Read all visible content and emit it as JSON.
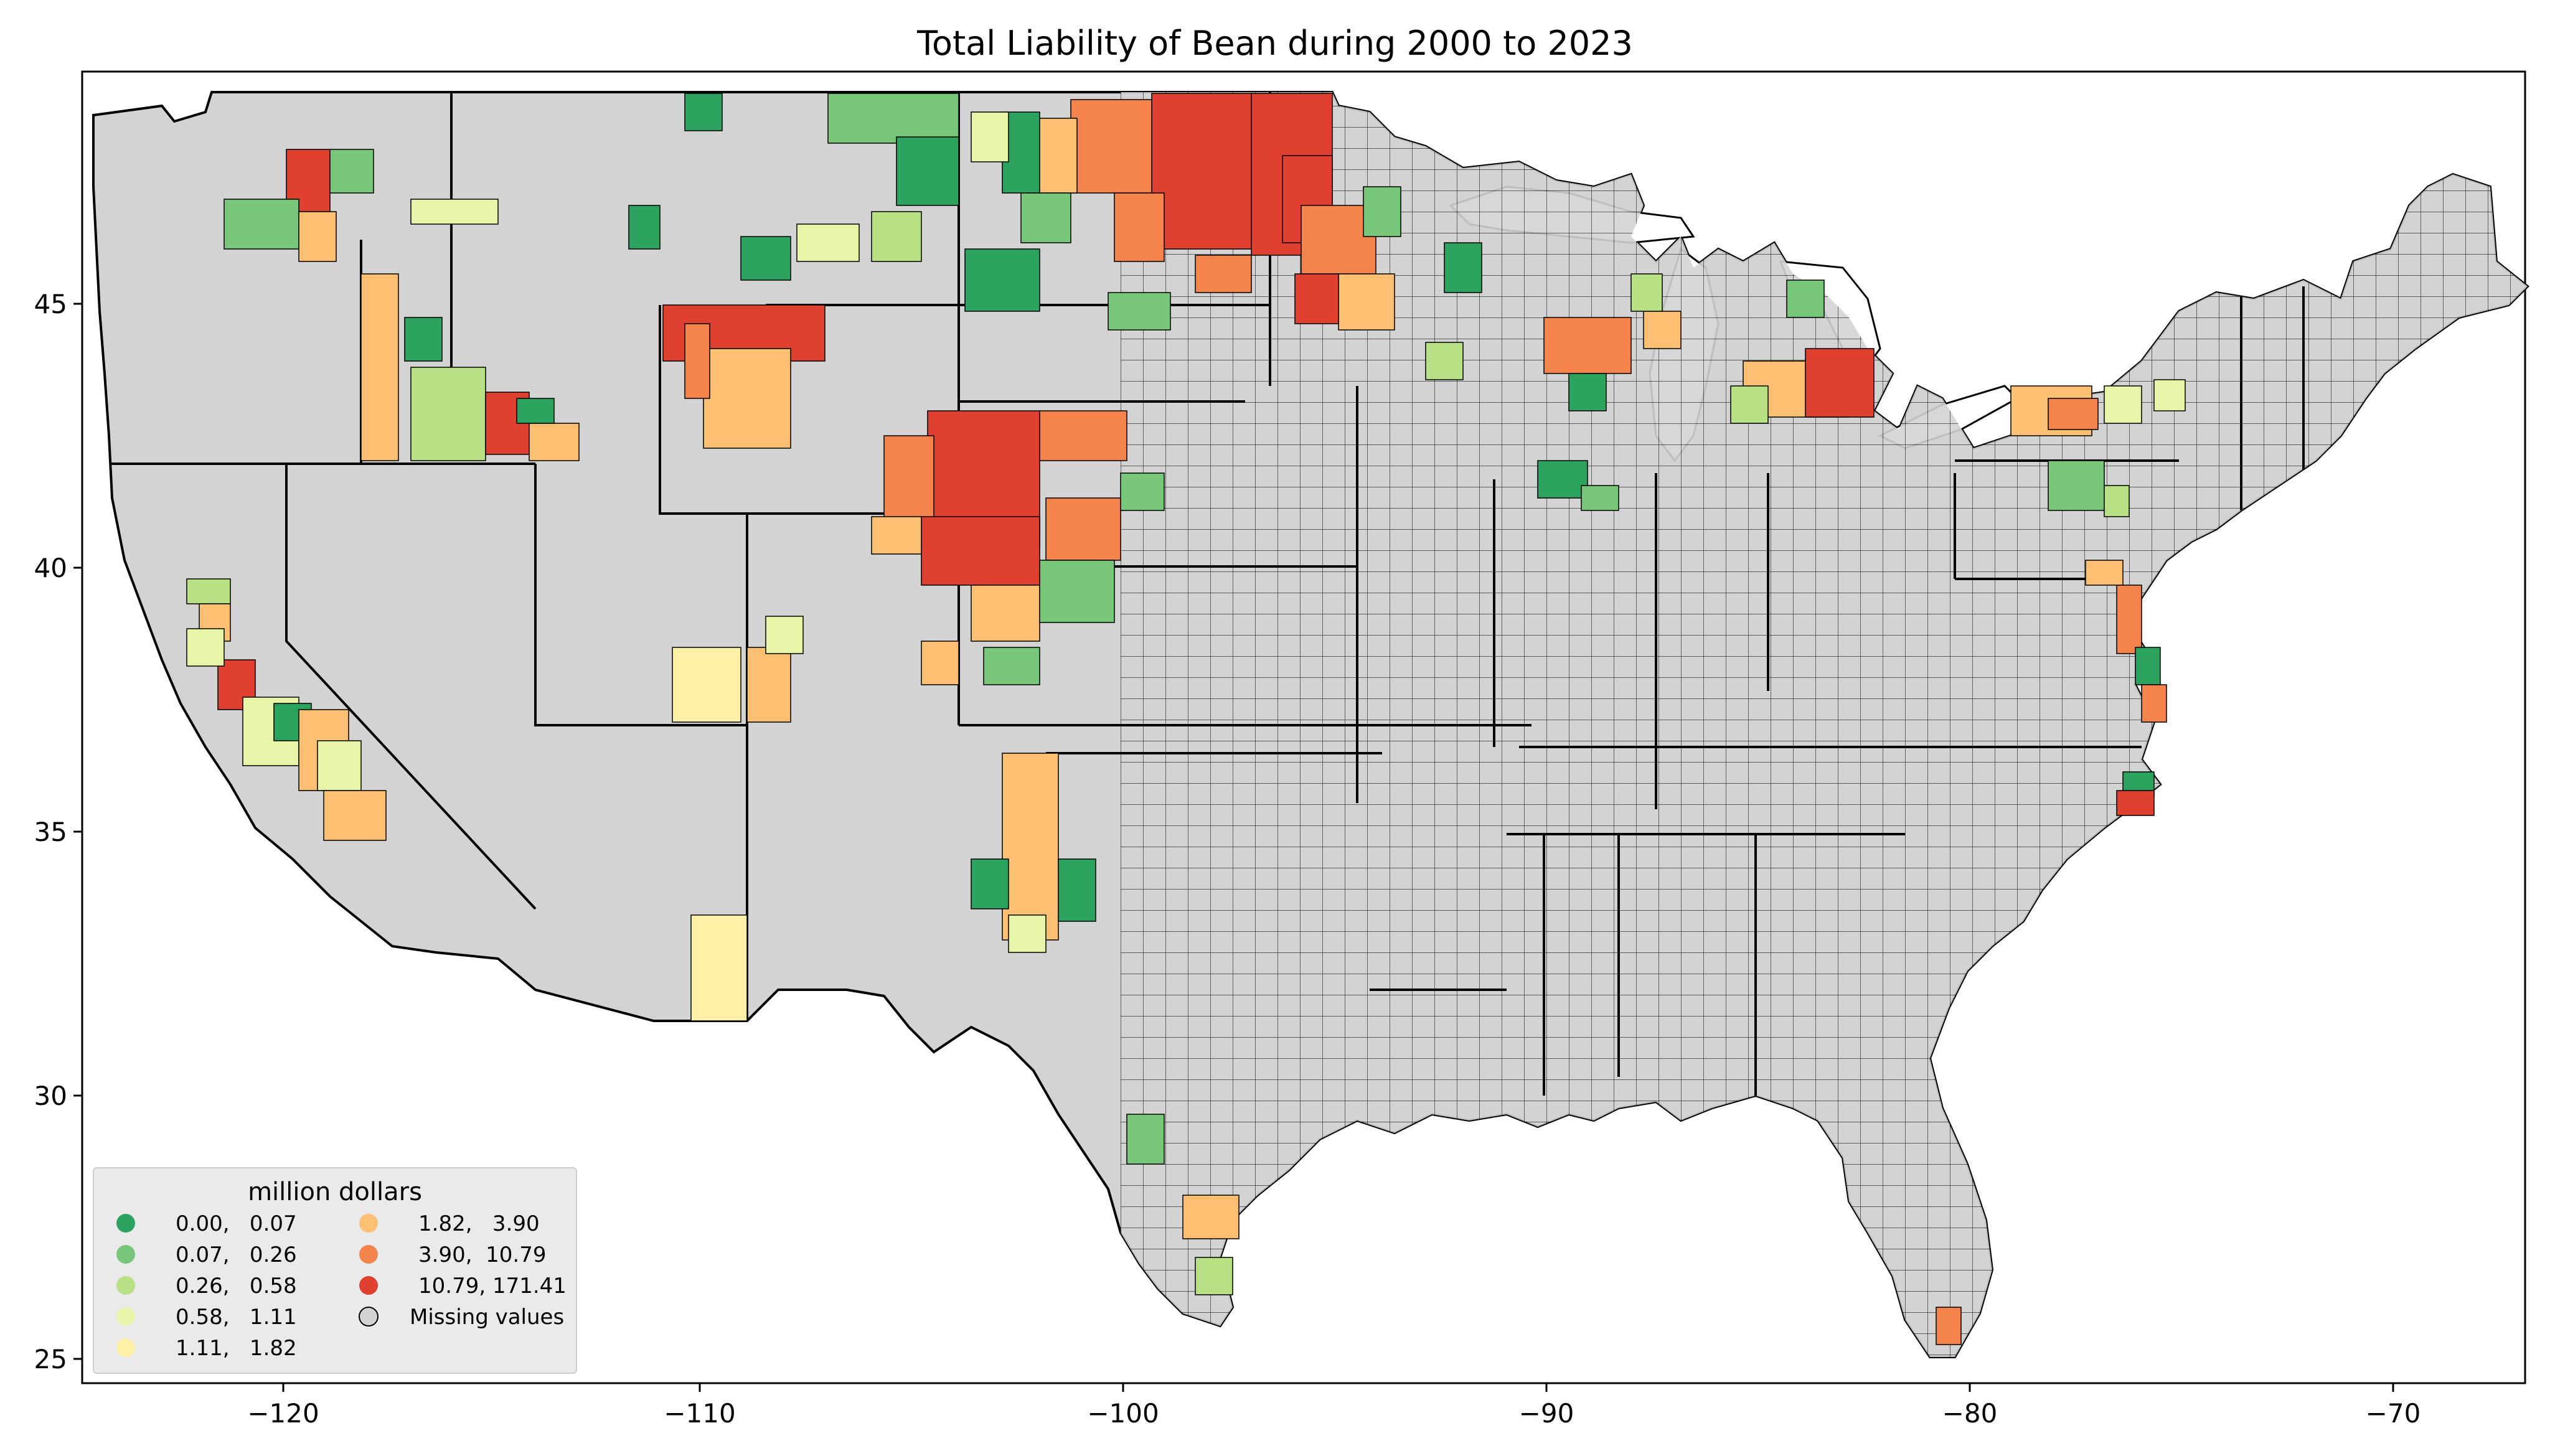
{
  "title": "Total Liability of Bean during 2000 to 2023",
  "axes": {
    "x_ticks": [
      "−120",
      "−110",
      "−100",
      "−90",
      "−80",
      "−70"
    ],
    "y_ticks": [
      "25",
      "30",
      "35",
      "40",
      "45"
    ]
  },
  "legend": {
    "title": "million dollars",
    "items": [
      {
        "label": "0.00,   0.07",
        "color": "#2ca25f"
      },
      {
        "label": "0.07,   0.26",
        "color": "#78c679"
      },
      {
        "label": "0.26,   0.58",
        "color": "#b8e186"
      },
      {
        "label": "0.58,   1.11",
        "color": "#e6f5a8"
      },
      {
        "label": "1.11,   1.82",
        "color": "#fff0a8"
      },
      {
        "label": "1.82,   3.90",
        "color": "#fdc073"
      },
      {
        "label": "3.90,  10.79",
        "color": "#f4844c"
      },
      {
        "label": "10.79, 171.41",
        "color": "#e0402f"
      },
      {
        "label": "Missing values",
        "color": "#d3d3d3"
      }
    ]
  },
  "colors": {
    "missing": "#d3d3d3",
    "border": "#000000"
  }
}
